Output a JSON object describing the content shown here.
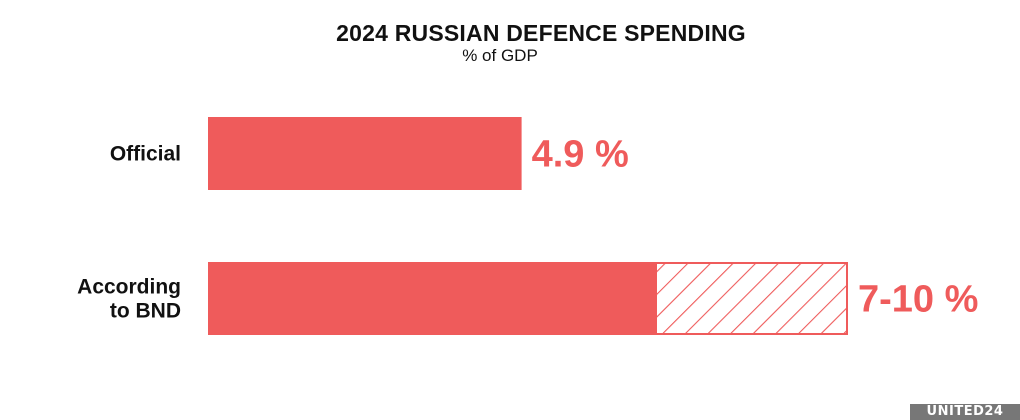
{
  "chart_data": {
    "type": "bar",
    "orientation": "horizontal",
    "title": "2024 RUSSIAN DEFENCE SPENDING",
    "subtitle": "% of GDP",
    "categories": [
      [
        "Official"
      ],
      [
        "According",
        "to BND"
      ]
    ],
    "values": [
      4.9,
      [
        7,
        10
      ]
    ],
    "value_labels": [
      "4.9 %",
      "7-10 %"
    ],
    "range_style": "hatched",
    "color": "#ef5b5b",
    "grid": false,
    "axes_visible": false
  },
  "logo": "UNITED24"
}
